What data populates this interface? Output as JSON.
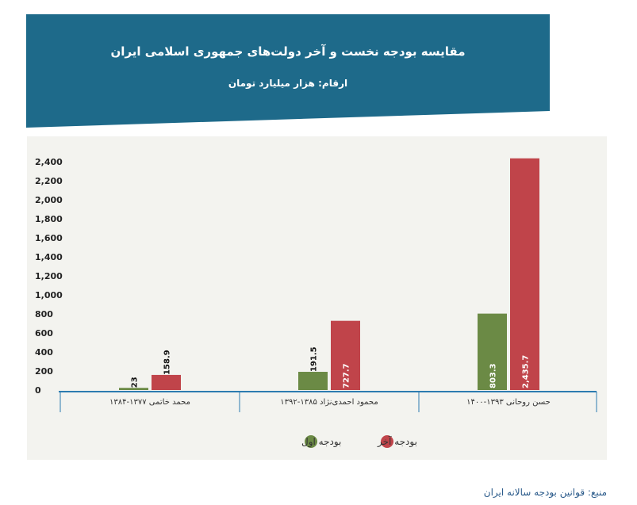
{
  "header": {
    "title": "مقایسه بودجه نخست و آخر دولت‌های جمهوری اسلامی ایران",
    "subtitle": "ارقام: هزار میلیارد تومان",
    "color": "#1e6a8a"
  },
  "source": "منبع: قوانین بودجه سالانه ایران",
  "chart_data": {
    "type": "bar",
    "categories": [
      "محمد خاتمی ۱۳۷۷-۱۳۸۴",
      "محمود احمدی‌نژاد ۱۳۸۵-۱۳۹۲",
      "حسن روحانی ۱۳۹۳-۱۴۰۰"
    ],
    "series": [
      {
        "name": "بودجه اول",
        "color": "#6b8a45",
        "values": [
          23,
          191.5,
          803.3
        ],
        "labels": [
          "23",
          "191.5",
          "803.3"
        ]
      },
      {
        "name": "بودجه آخر",
        "color": "#c0444a",
        "values": [
          158.9,
          727.7,
          2435.7
        ],
        "labels": [
          "158.9",
          "727.7",
          "2,435.7"
        ]
      }
    ],
    "yticks": [
      "0",
      "200",
      "400",
      "600",
      "800",
      "1,000",
      "1,200",
      "1,400",
      "1,600",
      "1,800",
      "2,000",
      "2,200",
      "2,400"
    ],
    "ylim": [
      0,
      2400
    ],
    "legend_position": "bottom",
    "grid": false
  }
}
